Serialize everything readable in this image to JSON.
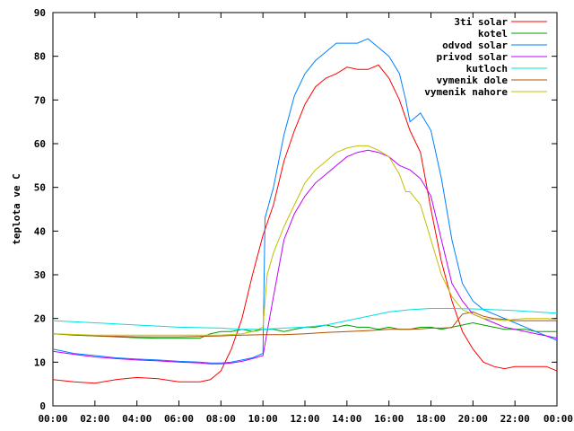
{
  "chart_data": {
    "type": "line",
    "title": "",
    "xlabel": "",
    "ylabel": "teplota ve C",
    "xlim": [
      0,
      24
    ],
    "ylim": [
      0,
      90
    ],
    "x_tick_labels": [
      "00:00",
      "02:00",
      "04:00",
      "06:00",
      "08:00",
      "10:00",
      "12:00",
      "14:00",
      "16:00",
      "18:00",
      "20:00",
      "22:00",
      "00:00"
    ],
    "y_tick_labels": [
      "0",
      "10",
      "20",
      "30",
      "40",
      "50",
      "60",
      "70",
      "80",
      "90"
    ],
    "legend_position": "top-right",
    "grid": false,
    "series": [
      {
        "name": "3ti solar",
        "color": "#ff0000",
        "x": [
          0,
          1,
          2,
          3,
          4,
          5,
          6,
          7,
          7.5,
          8,
          8.5,
          9,
          9.5,
          10,
          10.5,
          11,
          11.5,
          12,
          12.5,
          13,
          13.5,
          14,
          14.5,
          15,
          15.5,
          16,
          16.5,
          17,
          17.5,
          18,
          18.5,
          19,
          19.5,
          20,
          20.5,
          21,
          21.5,
          22,
          22.5,
          23,
          23.5,
          24
        ],
        "y": [
          6,
          5.5,
          5.2,
          6,
          6.5,
          6.2,
          5.5,
          5.5,
          6,
          8,
          13,
          20,
          30,
          39,
          46,
          56,
          63,
          69,
          73,
          75,
          76,
          77.5,
          77,
          77,
          78,
          75,
          70,
          63,
          58,
          45,
          33,
          24,
          17,
          13,
          10,
          9,
          8.5,
          9,
          9,
          9,
          9,
          8
        ]
      },
      {
        "name": "kotel",
        "color": "#00a000",
        "x": [
          0,
          1,
          2,
          3,
          4,
          5,
          6,
          7,
          7.5,
          8,
          8.5,
          9,
          9.5,
          10,
          10.5,
          11,
          11.5,
          12,
          12.5,
          13,
          13.5,
          14,
          14.5,
          15,
          15.5,
          16,
          16.5,
          17,
          17.5,
          18,
          18.5,
          19,
          19.5,
          20,
          20.5,
          21,
          21.5,
          22,
          22.5,
          23,
          23.5,
          24
        ],
        "y": [
          16.5,
          16.2,
          16,
          15.8,
          15.6,
          15.5,
          15.5,
          15.5,
          16.5,
          17,
          17,
          17.5,
          17,
          17.5,
          17.5,
          17,
          17.5,
          18,
          18,
          18.5,
          18,
          18.5,
          18,
          18,
          17.5,
          18,
          17.5,
          17.5,
          18,
          18,
          17.5,
          18,
          18.5,
          19,
          18.5,
          18,
          17.5,
          17.5,
          17.5,
          17,
          17,
          17
        ]
      },
      {
        "name": "odvod solar",
        "color": "#0080ff",
        "x": [
          0,
          1,
          2,
          3,
          4,
          5,
          6,
          7,
          7.5,
          8,
          8.5,
          9,
          9.5,
          10,
          10.1,
          10.5,
          11,
          11.5,
          12,
          12.5,
          13,
          13.5,
          14,
          14.5,
          15,
          15.5,
          16,
          16.5,
          16.8,
          17,
          17.5,
          18,
          18.5,
          19,
          19.5,
          20,
          20.5,
          21,
          21.5,
          22,
          22.5,
          23,
          23.5,
          24
        ],
        "y": [
          13,
          12,
          11.5,
          11,
          10.7,
          10.5,
          10.2,
          10,
          9.8,
          9.8,
          10,
          10.5,
          11,
          12,
          43,
          50,
          62,
          71,
          76,
          79,
          81,
          83,
          83,
          83,
          84,
          82,
          80,
          76,
          70,
          65,
          67,
          63,
          52,
          38,
          28,
          24,
          22,
          21,
          20,
          19,
          18,
          17,
          16,
          15
        ]
      },
      {
        "name": "privod solar",
        "color": "#c000ff",
        "x": [
          0,
          1,
          2,
          3,
          4,
          5,
          6,
          7,
          7.5,
          8,
          8.5,
          9,
          9.5,
          10,
          10.2,
          10.5,
          11,
          11.5,
          12,
          12.5,
          13,
          13.5,
          14,
          14.5,
          15,
          15.5,
          16,
          16.5,
          17,
          17.5,
          18,
          18.5,
          19,
          19.5,
          20,
          20.5,
          21,
          21.5,
          22,
          22.5,
          23,
          23.5,
          24
        ],
        "y": [
          12.5,
          11.8,
          11.2,
          10.8,
          10.5,
          10.3,
          10,
          9.8,
          9.6,
          9.6,
          9.8,
          10.2,
          10.8,
          11.5,
          17,
          25,
          38,
          44,
          48,
          51,
          53,
          55,
          57,
          58,
          58.5,
          58,
          57,
          55,
          54,
          52,
          48,
          38,
          28,
          24,
          21,
          20,
          19,
          18,
          17.5,
          17,
          16.5,
          16,
          15.5
        ]
      },
      {
        "name": "kutloch",
        "color": "#00e0e0",
        "x": [
          0,
          2,
          4,
          6,
          8,
          9,
          10,
          11,
          12,
          13,
          14,
          15,
          16,
          17,
          18,
          19,
          20,
          21,
          22,
          23,
          24
        ],
        "y": [
          19.5,
          19,
          18.5,
          18,
          17.8,
          17.5,
          17.5,
          17.8,
          18,
          18.5,
          19.5,
          20.5,
          21.5,
          22,
          22.3,
          22.3,
          22.2,
          22,
          21.8,
          21.5,
          21.2
        ]
      },
      {
        "name": "vymenik dole",
        "color": "#b05000",
        "x": [
          0,
          2,
          4,
          6,
          8,
          9,
          10,
          11,
          12,
          13,
          14,
          15,
          16,
          17,
          17.5,
          18,
          18.5,
          19,
          19.5,
          20,
          20.5,
          21,
          21.5,
          22,
          22.5,
          23,
          23.5,
          24
        ],
        "y": [
          16.5,
          16,
          15.8,
          15.8,
          16,
          16.2,
          16.3,
          16.3,
          16.5,
          16.8,
          17,
          17.2,
          17.5,
          17.5,
          17.6,
          17.8,
          17.8,
          17.9,
          21,
          21.5,
          20.5,
          20,
          19.8,
          19.5,
          19.5,
          19.5,
          19.5,
          19.5
        ]
      },
      {
        "name": "vymenik nahore",
        "color": "#c0c000",
        "x": [
          0,
          2,
          4,
          6,
          8,
          9,
          9.5,
          10,
          10.2,
          10.5,
          11,
          11.5,
          12,
          12.5,
          13,
          13.5,
          14,
          14.5,
          15,
          15.5,
          16,
          16.5,
          16.8,
          17,
          17.5,
          18,
          18.5,
          19,
          19.5,
          20,
          20.5,
          21,
          21.5,
          22,
          22.5,
          23,
          23.5,
          24
        ],
        "y": [
          16.5,
          16.2,
          16.2,
          16.2,
          16.2,
          16.5,
          17,
          18,
          30,
          35,
          41,
          46,
          51,
          54,
          56,
          58,
          59,
          59.5,
          59.5,
          58.5,
          57,
          53,
          49,
          49,
          46,
          38,
          30,
          25,
          22,
          21,
          20,
          19.8,
          19.5,
          19.8,
          20,
          20,
          20,
          19.8
        ]
      }
    ]
  }
}
